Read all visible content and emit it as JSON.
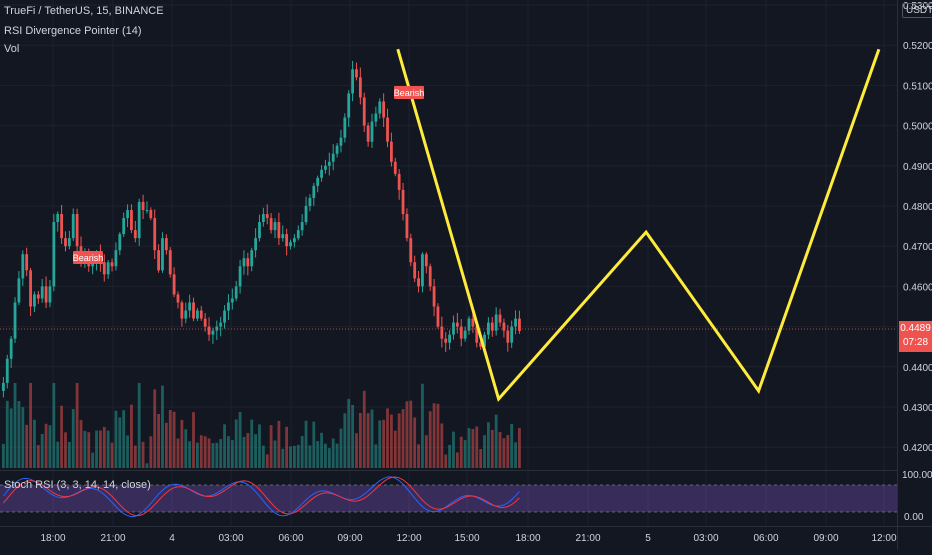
{
  "header": {
    "symbol_line": "TrueFi / TetherUS, 15, BINANCE",
    "indicator_1": "RSI Divergence Pointer (14)",
    "indicator_2": "Vol",
    "currency": "USDT"
  },
  "stoch_panel": {
    "label": "Stoch RSI (3, 3, 14, 14, close)",
    "axis_top": "100.00",
    "axis_bottom": "0.00"
  },
  "last_price": {
    "price": "0.4489",
    "countdown": "07:28"
  },
  "annotations": {
    "bearish_1": "Bearish",
    "bearish_2": "Bearish"
  },
  "colors": {
    "up": "#26a69a",
    "down": "#ef5350",
    "drawing": "#ffeb3b",
    "stoch_k": "#2962ff",
    "stoch_d": "#f23645",
    "stoch_band": "#7e57c2"
  },
  "chart_data": {
    "type": "candlestick",
    "price_axis_ticks": [
      "0.5300",
      "0.5200",
      "0.5100",
      "0.5000",
      "0.4900",
      "0.4800",
      "0.4700",
      "0.4600",
      "0.4500",
      "0.4400",
      "0.4300",
      "0.4200"
    ],
    "time_axis_ticks": [
      "18:00",
      "21:00",
      "4",
      "03:00",
      "06:00",
      "09:00",
      "12:00",
      "15:00",
      "18:00",
      "21:00",
      "5",
      "03:00",
      "06:00",
      "09:00",
      "12:00"
    ],
    "close_series": [
      0.436,
      0.442,
      0.447,
      0.456,
      0.462,
      0.468,
      0.464,
      0.455,
      0.458,
      0.457,
      0.46,
      0.456,
      0.46,
      0.476,
      0.478,
      0.472,
      0.47,
      0.472,
      0.478,
      0.47,
      0.466,
      0.468,
      0.465,
      0.466,
      0.468,
      0.466,
      0.463,
      0.466,
      0.465,
      0.469,
      0.473,
      0.477,
      0.479,
      0.474,
      0.472,
      0.481,
      0.479,
      0.479,
      0.477,
      0.469,
      0.464,
      0.472,
      0.469,
      0.463,
      0.458,
      0.456,
      0.452,
      0.454,
      0.456,
      0.452,
      0.454,
      0.452,
      0.45,
      0.448,
      0.449,
      0.45,
      0.451,
      0.454,
      0.456,
      0.457,
      0.46,
      0.465,
      0.467,
      0.465,
      0.469,
      0.472,
      0.476,
      0.478,
      0.477,
      0.474,
      0.476,
      0.472,
      0.473,
      0.47,
      0.471,
      0.472,
      0.474,
      0.476,
      0.48,
      0.482,
      0.485,
      0.487,
      0.489,
      0.49,
      0.491,
      0.493,
      0.495,
      0.497,
      0.502,
      0.508,
      0.514,
      0.512,
      0.507,
      0.5,
      0.496,
      0.501,
      0.503,
      0.506,
      0.502,
      0.496,
      0.491,
      0.488,
      0.484,
      0.478,
      0.472,
      0.466,
      0.462,
      0.46,
      0.468,
      0.465,
      0.46,
      0.455,
      0.45,
      0.447,
      0.446,
      0.448,
      0.451,
      0.45,
      0.447,
      0.449,
      0.452,
      0.45,
      0.446,
      0.445,
      0.448,
      0.451,
      0.449,
      0.453,
      0.451,
      0.449,
      0.446,
      0.45,
      0.452,
      0.4489
    ],
    "drawing_path": [
      {
        "bar": 102,
        "price": 0.519
      },
      {
        "bar": 128,
        "price": 0.432
      },
      {
        "bar": 166,
        "price": 0.4735
      },
      {
        "bar": 195,
        "price": 0.434
      },
      {
        "bar": 226,
        "price": 0.519
      }
    ],
    "price_range": [
      0.415,
      0.53
    ]
  }
}
